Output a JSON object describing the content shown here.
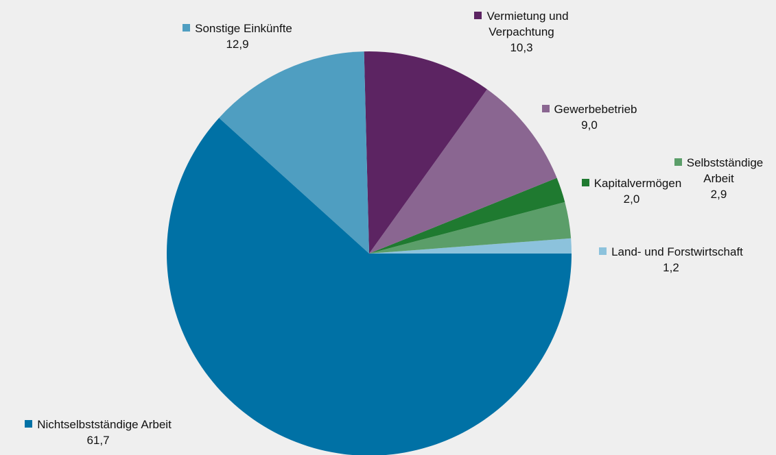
{
  "chart_data": {
    "type": "pie",
    "categories": [
      "Land- und Forstwirtschaft",
      "Selbstständige Arbeit",
      "Kapitalvermögen",
      "Gewerbebetrieb",
      "Vermietung und Verpachtung",
      "Sonstige Einkünfte",
      "Nichtselbstständige Arbeit"
    ],
    "values": [
      1.2,
      2.9,
      2.0,
      9.0,
      10.3,
      12.9,
      61.7
    ],
    "value_labels": [
      "1,2",
      "2,9",
      "2,0",
      "9,0",
      "10,3",
      "12,9",
      "61,7"
    ],
    "colors": [
      "#8cc2dc",
      "#5b9e69",
      "#1f7a30",
      "#8a6691",
      "#5c2462",
      "#4f9ec1",
      "#0071a5"
    ]
  }
}
